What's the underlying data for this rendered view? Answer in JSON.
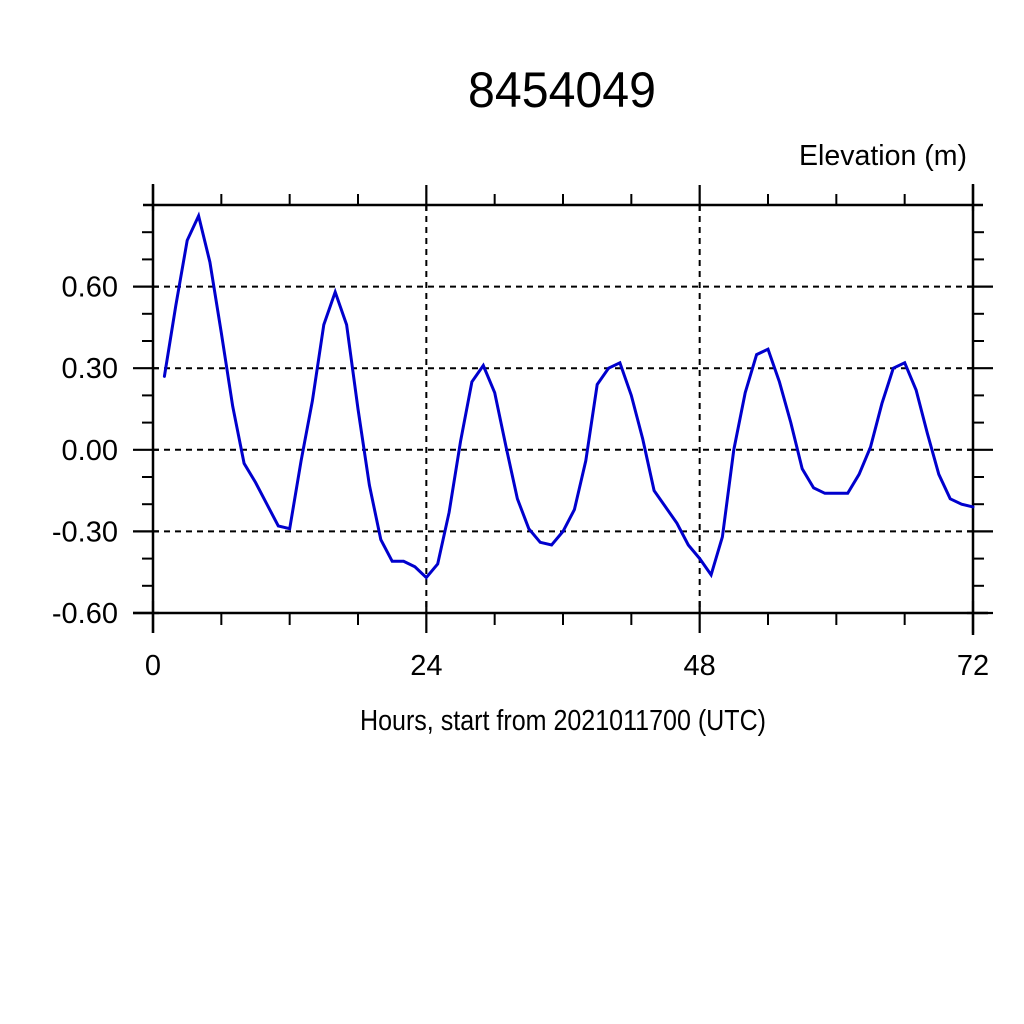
{
  "page": {
    "background_color": "#ffffff"
  },
  "chart_data": {
    "type": "line",
    "title": "8454049",
    "ylabel": "Elevation (m)",
    "xlabel": "Hours, start from 2021011700 (UTC)",
    "xlim": [
      0,
      72
    ],
    "ylim": [
      -0.6,
      0.9
    ],
    "x_major_ticks": [
      0,
      24,
      48,
      72
    ],
    "x_major_tick_labels": [
      "0",
      "24",
      "48",
      "72"
    ],
    "x_minor_ticks": [
      6,
      12,
      18,
      30,
      36,
      42,
      54,
      60,
      66
    ],
    "y_major_ticks": [
      -0.6,
      -0.3,
      0,
      0.3,
      0.6
    ],
    "y_major_tick_labels": [
      "-0.60",
      "-0.30",
      "0.00",
      "0.30",
      "0.60"
    ],
    "y_minor_ticks": [
      -0.5,
      -0.4,
      -0.2,
      -0.1,
      0.1,
      0.2,
      0.4,
      0.5,
      0.7,
      0.8
    ],
    "grid": {
      "style": "dashed",
      "x_gridlines": [
        24,
        48,
        72
      ],
      "y_gridlines": [
        -0.6,
        -0.3,
        0,
        0.3,
        0.6
      ]
    },
    "legend": "none",
    "line_color": "#0000cd",
    "frame_color": "#000000",
    "series": [
      {
        "name": "elevation",
        "x": [
          1,
          2,
          3,
          4,
          5,
          6,
          7,
          8,
          9,
          10,
          11,
          12,
          13,
          14,
          15,
          16,
          17,
          18,
          19,
          20,
          21,
          22,
          23,
          24,
          25,
          26,
          27,
          28,
          29,
          30,
          31,
          32,
          33,
          34,
          35,
          36,
          37,
          38,
          39,
          40,
          41,
          42,
          43,
          44,
          45,
          46,
          47,
          48,
          49,
          50,
          51,
          52,
          53,
          54,
          55,
          56,
          57,
          58,
          59,
          60,
          61,
          62,
          63,
          64,
          65,
          66,
          67,
          68,
          69,
          70,
          71,
          72
        ],
        "y": [
          0.27,
          0.53,
          0.77,
          0.86,
          0.69,
          0.43,
          0.16,
          -0.05,
          -0.12,
          -0.2,
          -0.28,
          -0.29,
          -0.04,
          0.18,
          0.46,
          0.58,
          0.46,
          0.15,
          -0.13,
          -0.33,
          -0.41,
          -0.41,
          -0.43,
          -0.47,
          -0.42,
          -0.23,
          0.03,
          0.25,
          0.31,
          0.21,
          0.01,
          -0.18,
          -0.29,
          -0.34,
          -0.35,
          -0.3,
          -0.22,
          -0.04,
          0.24,
          0.3,
          0.32,
          0.2,
          0.04,
          -0.15,
          -0.21,
          -0.27,
          -0.35,
          -0.4,
          -0.46,
          -0.32,
          0.0,
          0.21,
          0.35,
          0.37,
          0.25,
          0.1,
          -0.07,
          -0.14,
          -0.16,
          -0.16,
          -0.16,
          -0.09,
          0.01,
          0.17,
          0.3,
          0.32,
          0.22,
          0.06,
          -0.09,
          -0.18,
          -0.2,
          -0.21
        ]
      }
    ]
  }
}
